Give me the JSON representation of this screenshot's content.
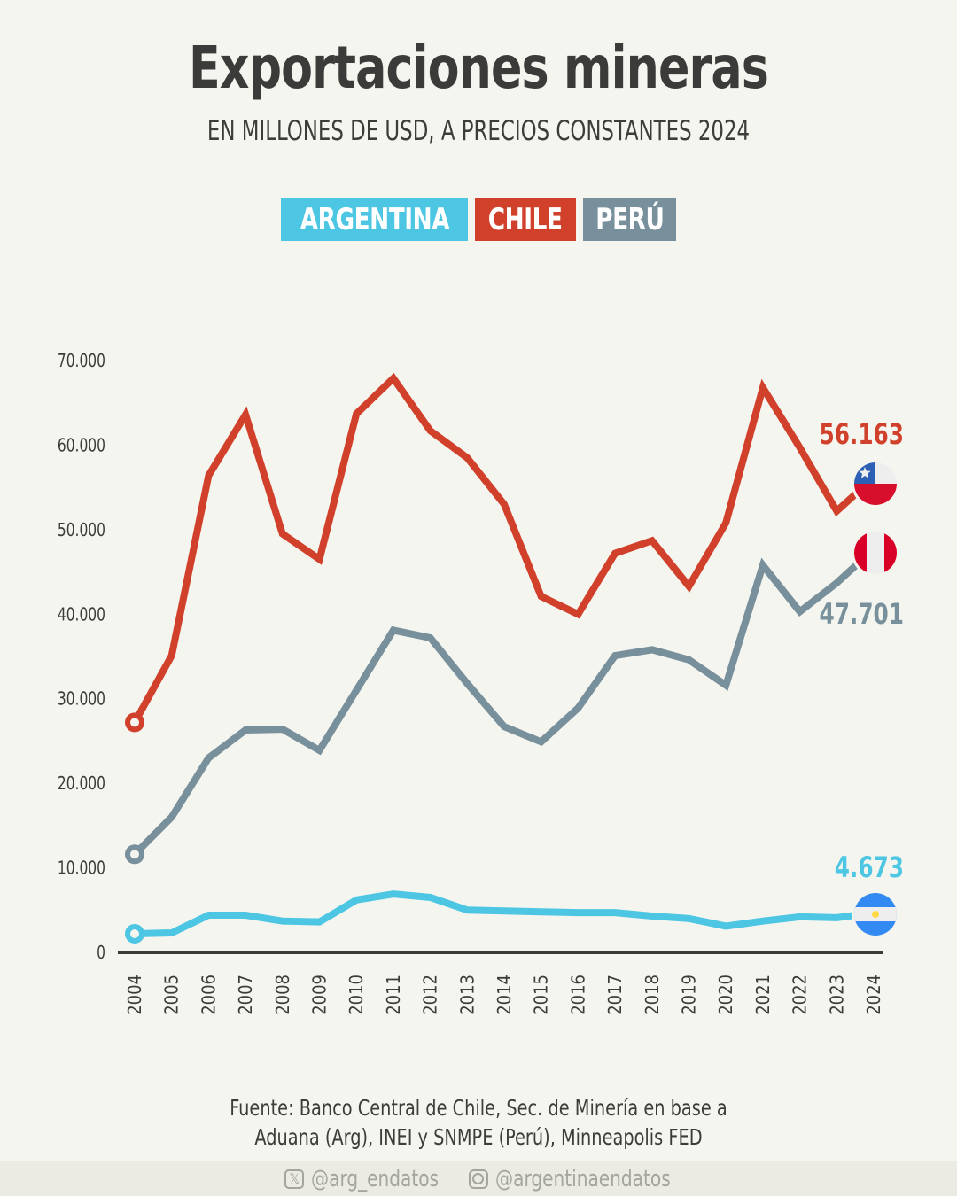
{
  "header": {
    "title": "Exportaciones mineras",
    "subtitle": "EN MILLONES DE USD, A PRECIOS CONSTANTES 2024"
  },
  "legend": [
    {
      "label": "ARGENTINA",
      "color": "#4cc6e3"
    },
    {
      "label": "CHILE",
      "color": "#d1402a"
    },
    {
      "label": "PERÚ",
      "color": "#788f9c"
    }
  ],
  "chart_data": {
    "type": "line",
    "title": "Exportaciones mineras",
    "subtitle": "EN MILLONES DE USD, A PRECIOS CONSTANTES 2024",
    "xlabel": "",
    "ylabel": "",
    "ylim": [
      0,
      70000
    ],
    "grid": false,
    "legend_position": "top-center",
    "x": [
      "2004",
      "2005",
      "2006",
      "2007",
      "2008",
      "2009",
      "2010",
      "2011",
      "2012",
      "2013",
      "2014",
      "2015",
      "2016",
      "2017",
      "2018",
      "2019",
      "2020",
      "2021",
      "2022",
      "2023",
      "2024"
    ],
    "y_ticks": [
      {
        "value": 0,
        "label": "0"
      },
      {
        "value": 10000,
        "label": "10.000"
      },
      {
        "value": 20000,
        "label": "20.000"
      },
      {
        "value": 30000,
        "label": "30.000"
      },
      {
        "value": 40000,
        "label": "40.000"
      },
      {
        "value": 50000,
        "label": "50.000"
      },
      {
        "value": 60000,
        "label": "60.000"
      },
      {
        "value": 70000,
        "label": "70.000"
      }
    ],
    "series": [
      {
        "name": "CHILE",
        "key": "chile",
        "color": "#d1402a",
        "values": [
          27200,
          35100,
          56400,
          63600,
          49500,
          46500,
          63700,
          67900,
          61700,
          58500,
          53000,
          42100,
          40000,
          47200,
          48700,
          43300,
          50800,
          66800,
          59700,
          52200,
          56163
        ],
        "end_label": "56.163",
        "flag": "chile-flag"
      },
      {
        "name": "PERÚ",
        "key": "peru",
        "color": "#788f9c",
        "values": [
          11600,
          16000,
          23000,
          26300,
          26400,
          23900,
          31000,
          38100,
          37200,
          31800,
          26700,
          24900,
          28900,
          35100,
          35800,
          34600,
          31600,
          45800,
          40300,
          43700,
          47701
        ],
        "end_label": "47.701",
        "flag": "peru-flag"
      },
      {
        "name": "ARGENTINA",
        "key": "argentina",
        "color": "#4cc6e3",
        "values": [
          2200,
          2300,
          4400,
          4400,
          3700,
          3600,
          6200,
          6900,
          6500,
          5000,
          4900,
          4800,
          4700,
          4700,
          4300,
          4000,
          3100,
          3700,
          4200,
          4100,
          4673
        ],
        "end_label": "4.673",
        "flag": "argentina-flag"
      }
    ]
  },
  "source": {
    "line1": "Fuente: Banco Central de Chile, Sec. de Minería en base a",
    "line2": "Aduana (Arg), INEI y SNMPE (Perú), Minneapolis FED"
  },
  "footer": {
    "twitter_icon": "x-logo-icon",
    "twitter": "@arg_endatos",
    "instagram_icon": "instagram-icon",
    "instagram": "@argentinaendatos"
  }
}
